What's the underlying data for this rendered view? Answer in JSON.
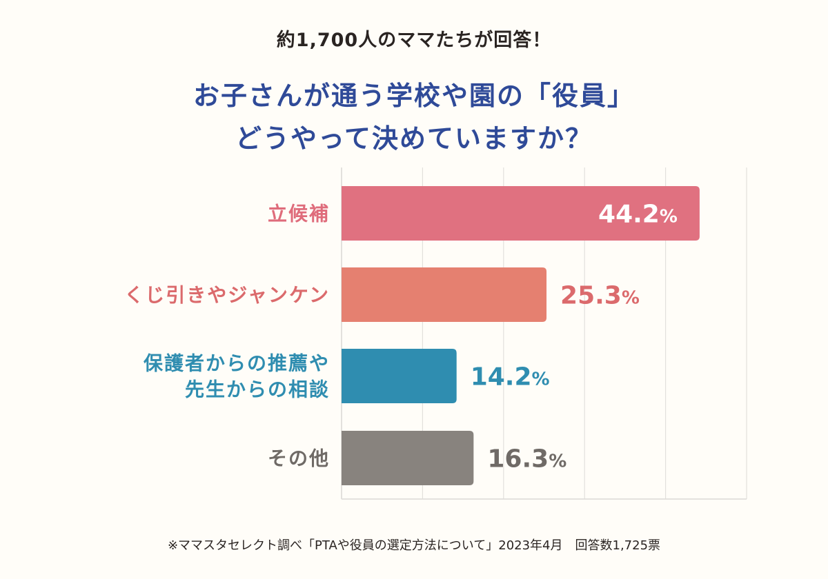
{
  "header": {
    "subtitle": "約1,700人のママたちが回答！",
    "title_line1": "お子さんが通う学校や園の「役員」",
    "title_line2": "どうやって決めていますか？"
  },
  "chart_data": {
    "type": "bar",
    "orientation": "horizontal",
    "categories": [
      [
        "立候補"
      ],
      [
        "くじ引きやジャンケン"
      ],
      [
        "保護者からの推薦や",
        "先生からの相談"
      ],
      [
        "その他"
      ]
    ],
    "values": [
      44.2,
      25.3,
      14.2,
      16.3
    ],
    "data_labels": [
      "44.2%",
      "25.3%",
      "14.2%",
      "16.3%"
    ],
    "unit": "%",
    "xlim": [
      0,
      50
    ],
    "grid": true,
    "grid_step": 10,
    "bar_colors": [
      "#e07180",
      "#e58070",
      "#2f8db0",
      "#88837e"
    ],
    "label_colors": [
      "#df6c7b",
      "#db6a6c",
      "#2f8db0",
      "#6f6a66"
    ],
    "value_label_inside": [
      true,
      false,
      false,
      false
    ]
  },
  "footer": {
    "source": "※ママスタセレクト調べ「PTAや役員の選定方法について」2023年4月　回答数1,725票"
  }
}
